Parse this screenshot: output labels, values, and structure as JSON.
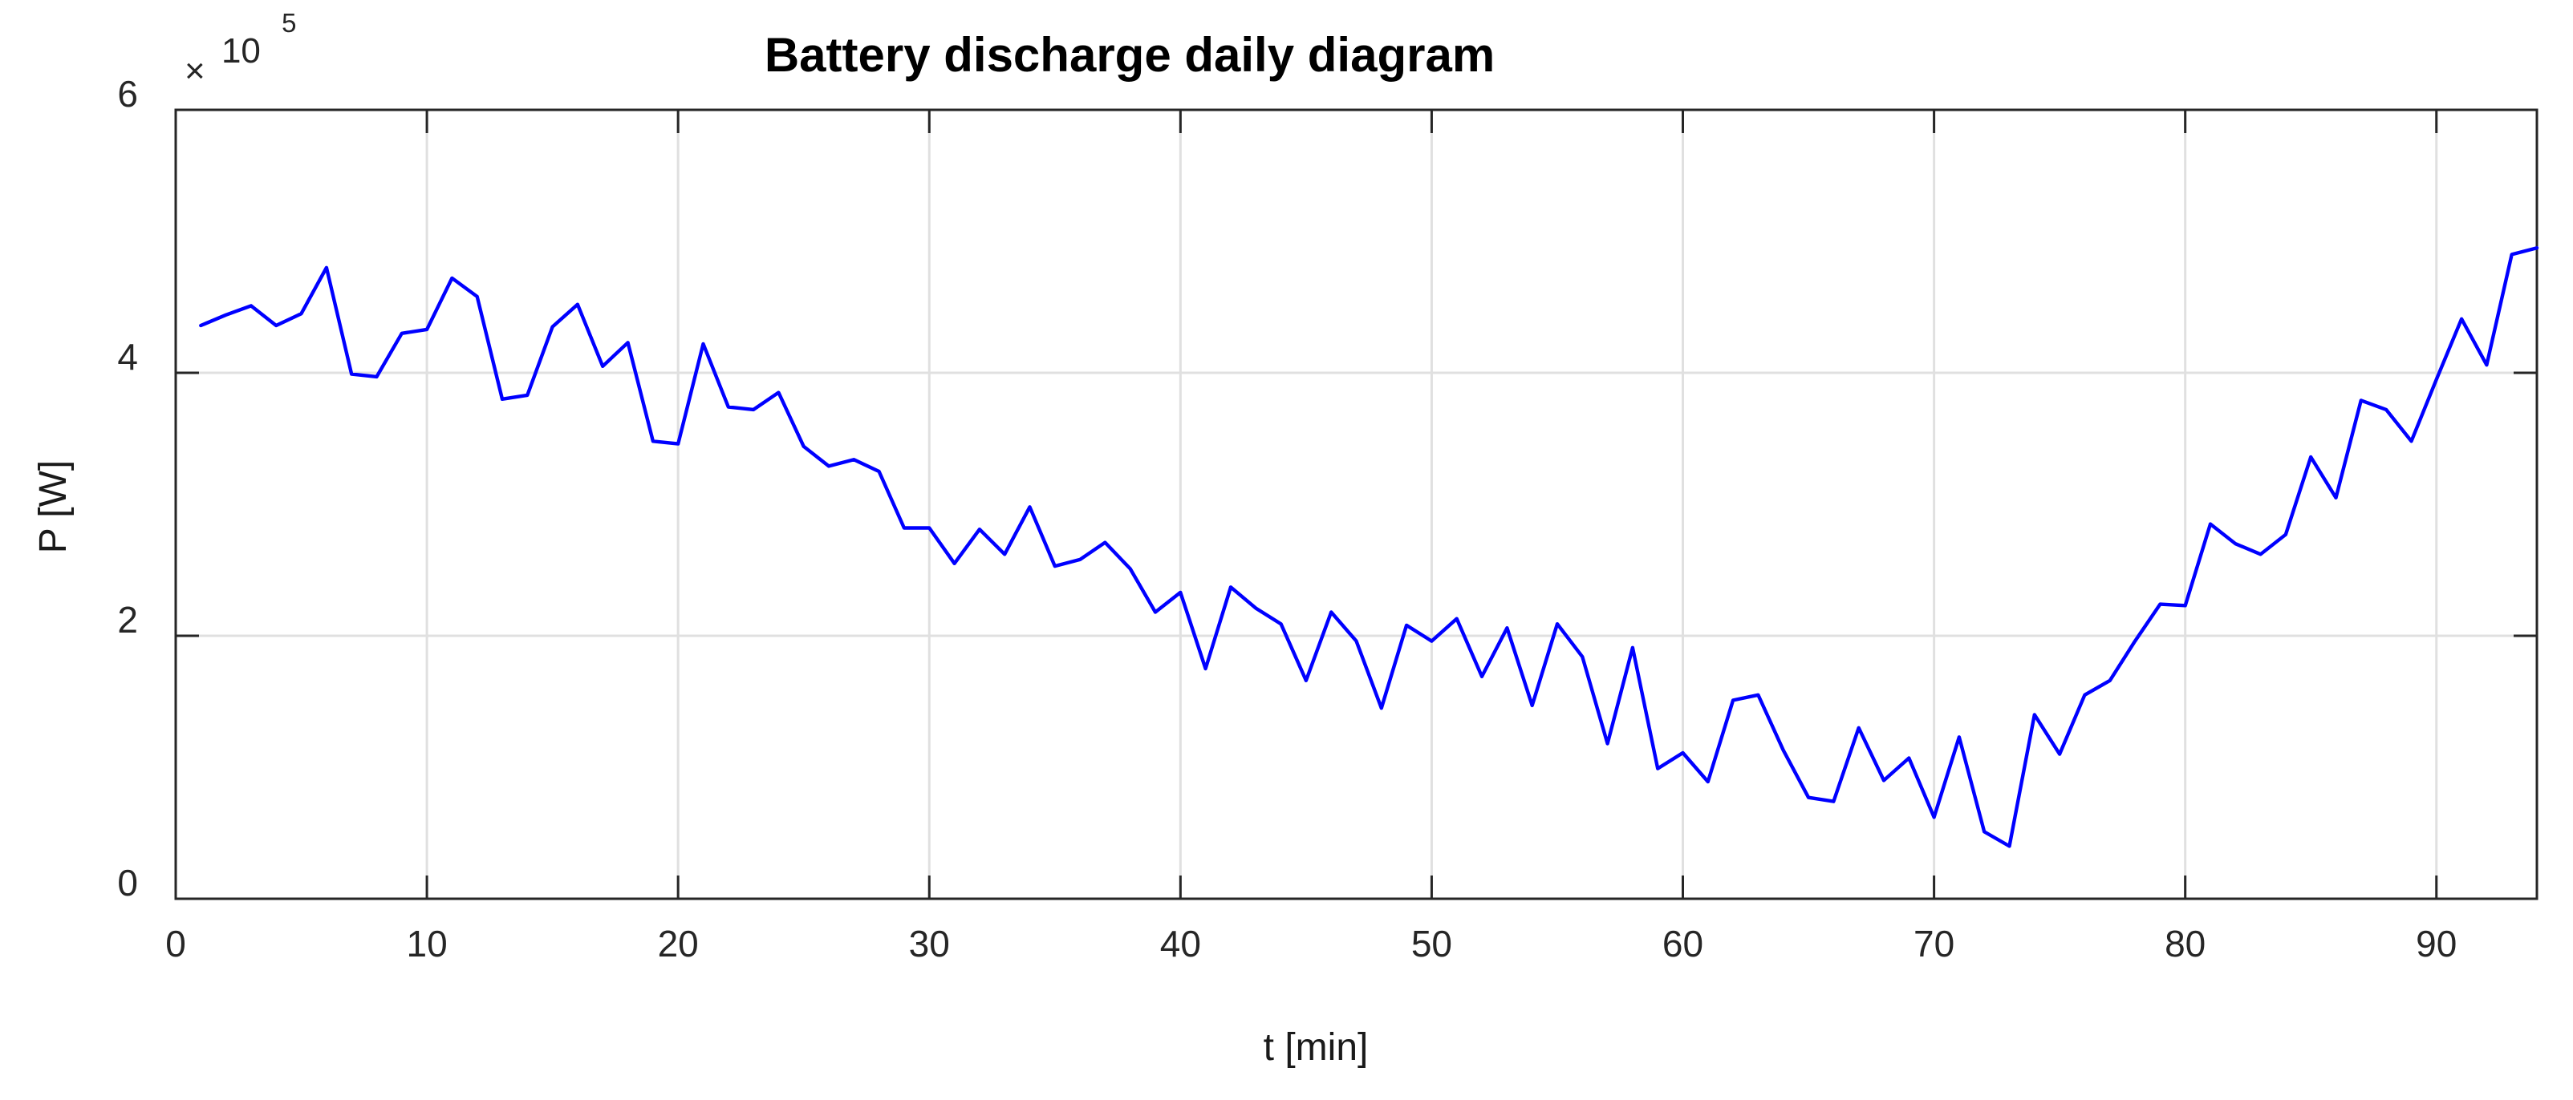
{
  "title": "Battery discharge daily diagram",
  "axes": {
    "xlabel": "t [min]",
    "ylabel": "P [W]",
    "exponent_times": "×",
    "exponent_base": "10",
    "exponent_power": "5",
    "x_tick_labels": [
      "0",
      "10",
      "20",
      "30",
      "40",
      "50",
      "60",
      "70",
      "80",
      "90"
    ],
    "y_tick_labels": [
      "0",
      "2",
      "4",
      "6"
    ]
  },
  "colors": {
    "line": "#0000FF",
    "grid": "#E0E0E0",
    "axis": "#262626",
    "title": "#000000",
    "background": "#FFFFFF"
  },
  "chart_data": {
    "type": "line",
    "title": "Battery discharge daily diagram",
    "xlabel": "t [min]",
    "ylabel": "P [W]",
    "y_unit_multiplier": "x10^5 W",
    "xlim": [
      0,
      94
    ],
    "ylim": [
      0,
      6
    ],
    "x_ticks": [
      0,
      10,
      20,
      30,
      40,
      50,
      60,
      70,
      80,
      90
    ],
    "y_ticks": [
      0,
      2,
      4,
      6
    ],
    "grid": true,
    "legend": "none",
    "line_color": "#0000FF",
    "x": [
      1,
      2,
      3,
      4,
      5,
      6,
      7,
      8,
      9,
      10,
      11,
      12,
      13,
      14,
      15,
      16,
      17,
      18,
      19,
      20,
      21,
      22,
      23,
      24,
      25,
      26,
      27,
      28,
      29,
      30,
      31,
      32,
      33,
      34,
      35,
      36,
      37,
      38,
      39,
      40,
      41,
      42,
      43,
      44,
      45,
      46,
      47,
      48,
      49,
      50,
      51,
      52,
      53,
      54,
      55,
      56,
      57,
      58,
      59,
      60,
      61,
      62,
      63,
      64,
      65,
      66,
      67,
      68,
      69,
      70,
      71,
      72,
      73,
      74,
      75,
      76,
      77,
      78,
      79,
      80,
      81,
      82,
      83,
      84,
      85,
      86,
      87,
      88,
      89,
      90,
      91,
      92,
      93,
      94
    ],
    "values": [
      4.36,
      4.44,
      4.51,
      4.36,
      4.45,
      4.8,
      3.99,
      3.97,
      4.3,
      4.33,
      4.72,
      4.58,
      3.8,
      3.83,
      4.35,
      4.52,
      4.05,
      4.23,
      3.48,
      3.46,
      4.22,
      3.74,
      3.72,
      3.85,
      3.44,
      3.29,
      3.34,
      3.25,
      2.82,
      2.82,
      2.55,
      2.81,
      2.62,
      2.98,
      2.53,
      2.58,
      2.71,
      2.51,
      2.18,
      2.33,
      1.75,
      2.37,
      2.21,
      2.09,
      1.66,
      2.18,
      1.96,
      1.45,
      2.08,
      1.96,
      2.13,
      1.69,
      2.06,
      1.47,
      2.09,
      1.84,
      1.18,
      1.91,
      0.99,
      1.11,
      0.89,
      1.51,
      1.55,
      1.13,
      0.77,
      0.74,
      1.3,
      0.9,
      1.07,
      0.62,
      1.23,
      0.51,
      0.4,
      1.4,
      1.1,
      1.55,
      1.66,
      1.96,
      2.24,
      2.23,
      2.85,
      2.7,
      2.62,
      2.77,
      3.36,
      3.05,
      3.79,
      3.72,
      3.48,
      3.95,
      4.41,
      4.06,
      4.9,
      4.95
    ]
  }
}
